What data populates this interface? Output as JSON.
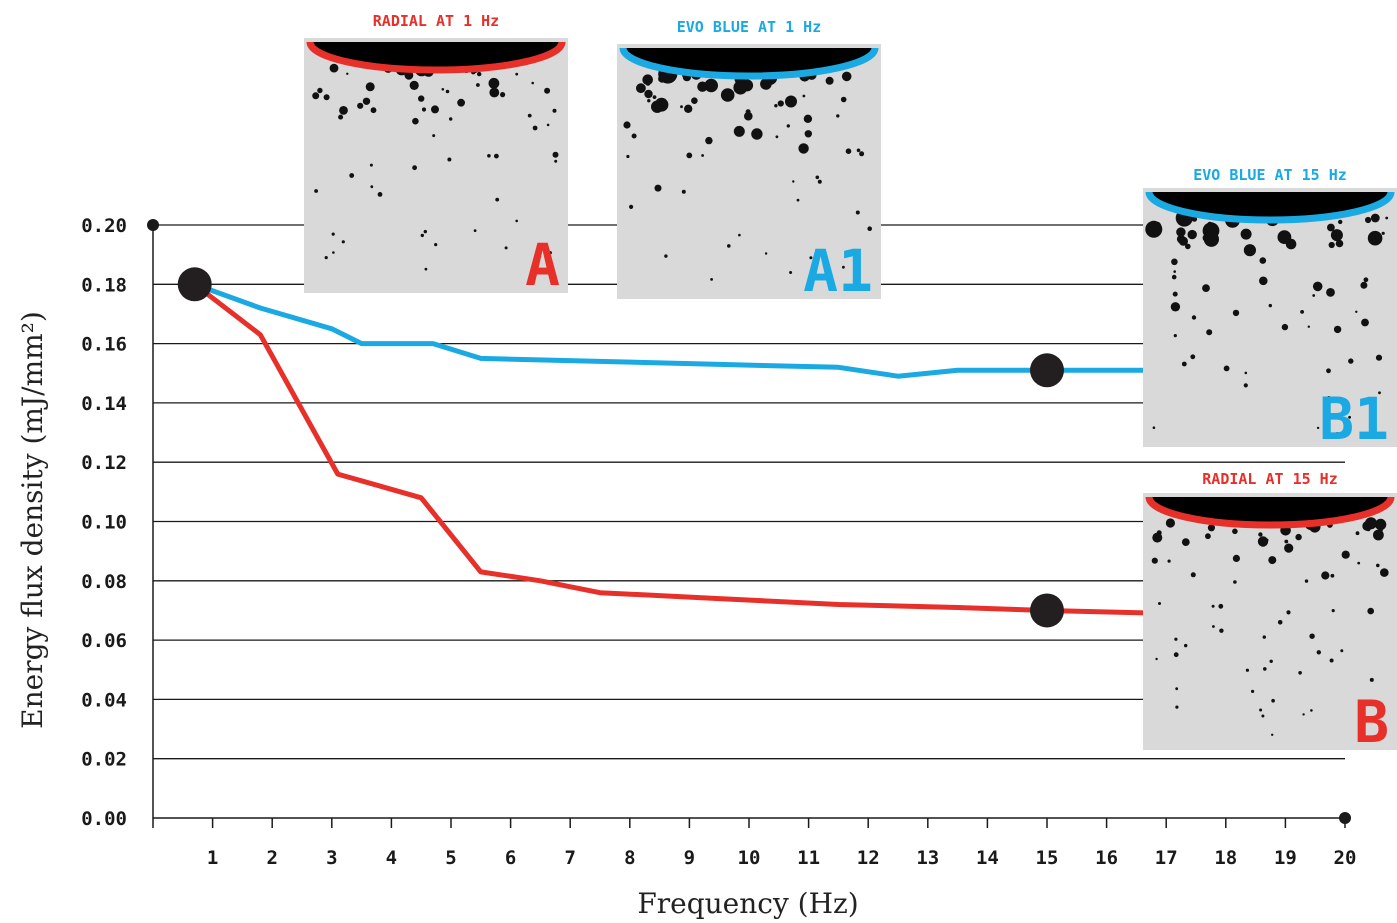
{
  "chart_data": {
    "type": "line",
    "xlabel": "Frequency (Hz)",
    "ylabel": "Energy flux density (mJ/mm²)",
    "x_ticks": [
      "1",
      "2",
      "3",
      "4",
      "5",
      "6",
      "7",
      "8",
      "9",
      "10",
      "11",
      "12",
      "13",
      "14",
      "15",
      "16",
      "17",
      "18",
      "19",
      "20"
    ],
    "y_ticks": [
      "0.00",
      "0.02",
      "0.04",
      "0.06",
      "0.08",
      "0.10",
      "0.12",
      "0.14",
      "0.16",
      "0.18",
      "0.20"
    ],
    "xlim": [
      0,
      20
    ],
    "ylim": [
      0,
      0.2
    ],
    "grid": "horizontal",
    "series": [
      {
        "name": "EVO BLUE",
        "color": "#1aa9e3",
        "x": [
          0.7,
          1.8,
          3.0,
          3.5,
          4.7,
          5.5,
          7.5,
          9.5,
          11.5,
          12.5,
          13.5,
          15.0,
          17.0
        ],
        "y": [
          0.18,
          0.172,
          0.165,
          0.16,
          0.16,
          0.155,
          0.154,
          0.153,
          0.152,
          0.149,
          0.151,
          0.151,
          0.151
        ]
      },
      {
        "name": "RADIAL",
        "color": "#e8302a",
        "x": [
          0.7,
          1.8,
          3.1,
          4.5,
          5.5,
          6.5,
          7.5,
          9.5,
          11.5,
          13.5,
          15.0,
          17.0
        ],
        "y": [
          0.18,
          0.163,
          0.116,
          0.108,
          0.083,
          0.08,
          0.076,
          0.074,
          0.072,
          0.071,
          0.07,
          0.069
        ]
      }
    ],
    "markers": [
      {
        "x": 0.7,
        "y": 0.18
      },
      {
        "x": 15,
        "y": 0.151
      },
      {
        "x": 15,
        "y": 0.07
      }
    ],
    "photos": [
      {
        "label": "RADIAL AT 1 Hz",
        "letter": "A",
        "color": "#e8302a"
      },
      {
        "label": "EVO BLUE AT 1 Hz",
        "letter": "A1",
        "color": "#1aa9e3"
      },
      {
        "label": "EVO BLUE AT 15 Hz",
        "letter": "B1",
        "color": "#1aa9e3"
      },
      {
        "label": "RADIAL AT 15 Hz",
        "letter": "B",
        "color": "#e8302a"
      }
    ]
  }
}
